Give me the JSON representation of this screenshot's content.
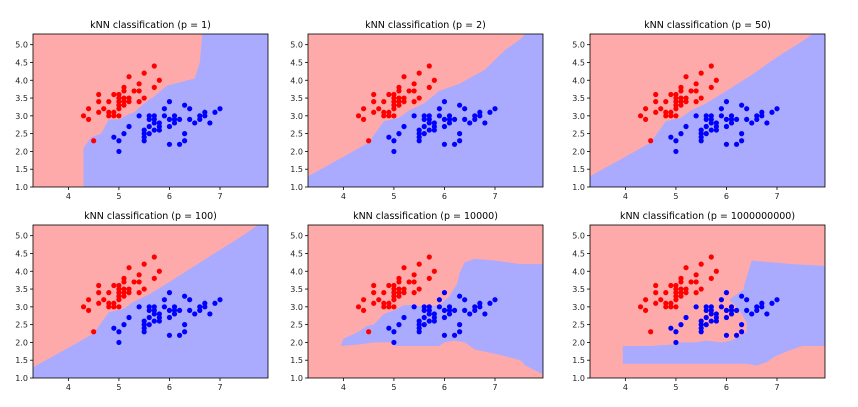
{
  "chart_data": {
    "type": "scatter",
    "colors": {
      "class0_region": "#ffaaaa",
      "class1_region": "#aaaaff",
      "class0_point": "#ff0000",
      "class1_point": "#0000ff"
    },
    "xlim": [
      3.3,
      7.95
    ],
    "ylim": [
      1.0,
      5.3
    ],
    "xticks": [
      4,
      5,
      6,
      7
    ],
    "yticks": [
      1.0,
      1.5,
      2.0,
      2.5,
      3.0,
      3.5,
      4.0,
      4.5,
      5.0
    ],
    "points_class0": [
      [
        4.3,
        3.0
      ],
      [
        4.4,
        2.9
      ],
      [
        4.4,
        3.2
      ],
      [
        4.5,
        2.3
      ],
      [
        4.6,
        3.1
      ],
      [
        4.6,
        3.4
      ],
      [
        4.6,
        3.6
      ],
      [
        4.7,
        3.2
      ],
      [
        4.8,
        3.0
      ],
      [
        4.8,
        3.4
      ],
      [
        4.8,
        3.1
      ],
      [
        4.9,
        3.0
      ],
      [
        4.9,
        3.1
      ],
      [
        4.9,
        3.6
      ],
      [
        5.0,
        3.6
      ],
      [
        5.0,
        3.4
      ],
      [
        5.0,
        3.0
      ],
      [
        5.0,
        3.3
      ],
      [
        5.0,
        3.5
      ],
      [
        5.0,
        3.2
      ],
      [
        5.1,
        3.5
      ],
      [
        5.1,
        3.7
      ],
      [
        5.1,
        3.3
      ],
      [
        5.1,
        3.8
      ],
      [
        5.1,
        3.4
      ],
      [
        5.2,
        3.5
      ],
      [
        5.2,
        3.4
      ],
      [
        5.2,
        4.1
      ],
      [
        5.3,
        3.7
      ],
      [
        5.4,
        3.9
      ],
      [
        5.4,
        3.7
      ],
      [
        5.4,
        3.4
      ],
      [
        5.5,
        4.2
      ],
      [
        5.5,
        3.5
      ],
      [
        5.7,
        4.4
      ],
      [
        5.7,
        3.8
      ],
      [
        5.8,
        4.0
      ]
    ],
    "points_class1": [
      [
        4.9,
        2.4
      ],
      [
        5.0,
        2.0
      ],
      [
        5.0,
        2.3
      ],
      [
        5.1,
        2.5
      ],
      [
        5.2,
        2.7
      ],
      [
        5.4,
        3.0
      ],
      [
        5.5,
        2.3
      ],
      [
        5.5,
        2.4
      ],
      [
        5.5,
        2.5
      ],
      [
        5.5,
        2.6
      ],
      [
        5.6,
        2.9
      ],
      [
        5.6,
        3.0
      ],
      [
        5.6,
        2.5
      ],
      [
        5.6,
        2.7
      ],
      [
        5.7,
        2.8
      ],
      [
        5.7,
        2.6
      ],
      [
        5.7,
        3.0
      ],
      [
        5.7,
        2.9
      ],
      [
        5.8,
        2.7
      ],
      [
        5.8,
        2.6
      ],
      [
        5.8,
        2.8
      ],
      [
        5.9,
        3.0
      ],
      [
        5.9,
        3.2
      ],
      [
        6.0,
        2.2
      ],
      [
        6.0,
        2.9
      ],
      [
        6.0,
        2.7
      ],
      [
        6.0,
        3.4
      ],
      [
        6.1,
        2.9
      ],
      [
        6.1,
        2.8
      ],
      [
        6.1,
        3.0
      ],
      [
        6.2,
        2.2
      ],
      [
        6.2,
        2.9
      ],
      [
        6.3,
        3.3
      ],
      [
        6.3,
        2.5
      ],
      [
        6.3,
        2.3
      ],
      [
        6.4,
        3.2
      ],
      [
        6.4,
        2.9
      ],
      [
        6.5,
        2.8
      ],
      [
        6.6,
        2.9
      ],
      [
        6.6,
        3.0
      ],
      [
        6.7,
        3.1
      ],
      [
        6.7,
        3.0
      ],
      [
        6.8,
        2.8
      ],
      [
        6.9,
        3.1
      ],
      [
        7.0,
        3.2
      ]
    ],
    "panels": [
      {
        "title": "kNN classification (p = 1)",
        "class0_region": [
          [
            3.3,
            1.0
          ],
          [
            4.3,
            1.0
          ],
          [
            4.3,
            2.1
          ],
          [
            4.45,
            2.4
          ],
          [
            4.65,
            2.5
          ],
          [
            4.8,
            2.9
          ],
          [
            5.0,
            2.9
          ],
          [
            5.2,
            3.05
          ],
          [
            5.3,
            3.1
          ],
          [
            5.5,
            3.35
          ],
          [
            5.7,
            3.55
          ],
          [
            5.95,
            3.85
          ],
          [
            6.5,
            4.05
          ],
          [
            6.6,
            4.5
          ],
          [
            6.65,
            5.3
          ],
          [
            3.3,
            5.3
          ]
        ]
      },
      {
        "title": "kNN classification (p = 2)",
        "class0_region": [
          [
            3.3,
            1.3
          ],
          [
            4.0,
            1.85
          ],
          [
            4.5,
            2.25
          ],
          [
            4.8,
            2.85
          ],
          [
            5.1,
            2.95
          ],
          [
            5.3,
            3.15
          ],
          [
            5.6,
            3.35
          ],
          [
            5.9,
            3.7
          ],
          [
            6.3,
            3.9
          ],
          [
            6.8,
            4.3
          ],
          [
            7.2,
            4.85
          ],
          [
            7.5,
            5.15
          ],
          [
            7.6,
            5.3
          ],
          [
            3.3,
            5.3
          ]
        ]
      },
      {
        "title": "kNN classification (p = 50)",
        "class0_region": [
          [
            3.3,
            1.3
          ],
          [
            4.0,
            1.85
          ],
          [
            4.5,
            2.25
          ],
          [
            4.8,
            2.85
          ],
          [
            5.1,
            2.95
          ],
          [
            5.3,
            3.15
          ],
          [
            5.6,
            3.35
          ],
          [
            6.0,
            3.7
          ],
          [
            6.5,
            4.15
          ],
          [
            7.0,
            4.65
          ],
          [
            7.5,
            5.1
          ],
          [
            7.7,
            5.3
          ],
          [
            3.3,
            5.3
          ]
        ]
      },
      {
        "title": "kNN classification (p = 100)",
        "class0_region": [
          [
            3.3,
            1.3
          ],
          [
            4.0,
            1.85
          ],
          [
            4.5,
            2.25
          ],
          [
            4.8,
            2.85
          ],
          [
            5.1,
            2.95
          ],
          [
            5.3,
            3.15
          ],
          [
            5.6,
            3.35
          ],
          [
            6.0,
            3.7
          ],
          [
            6.5,
            4.15
          ],
          [
            7.0,
            4.6
          ],
          [
            7.5,
            5.05
          ],
          [
            7.75,
            5.3
          ],
          [
            3.3,
            5.3
          ]
        ]
      },
      {
        "title": "kNN classification (p = 10000)",
        "class1_region": [
          [
            3.95,
            1.9
          ],
          [
            4.35,
            1.95
          ],
          [
            4.6,
            2.0
          ],
          [
            5.0,
            2.0
          ],
          [
            5.0,
            1.9
          ],
          [
            5.9,
            1.9
          ],
          [
            6.0,
            2.0
          ],
          [
            6.2,
            2.05
          ],
          [
            6.4,
            2.0
          ],
          [
            6.6,
            1.8
          ],
          [
            7.1,
            1.65
          ],
          [
            7.5,
            1.5
          ],
          [
            7.6,
            1.35
          ],
          [
            7.95,
            1.1
          ],
          [
            7.95,
            4.2
          ],
          [
            7.5,
            4.2
          ],
          [
            7.0,
            4.3
          ],
          [
            6.6,
            4.35
          ],
          [
            6.4,
            4.25
          ],
          [
            6.3,
            3.95
          ],
          [
            6.25,
            3.65
          ],
          [
            6.1,
            3.3
          ],
          [
            5.9,
            3.05
          ],
          [
            5.6,
            3.0
          ],
          [
            5.4,
            3.05
          ],
          [
            5.2,
            3.05
          ],
          [
            5.0,
            2.9
          ],
          [
            4.8,
            2.8
          ],
          [
            4.6,
            2.5
          ],
          [
            4.45,
            2.45
          ],
          [
            4.3,
            2.3
          ],
          [
            4.0,
            2.1
          ]
        ]
      },
      {
        "title": "kNN classification (p = 1000000000)",
        "class1_region": [
          [
            3.95,
            1.4
          ],
          [
            3.95,
            1.9
          ],
          [
            4.35,
            1.9
          ],
          [
            4.5,
            1.9
          ],
          [
            5.0,
            1.95
          ],
          [
            5.0,
            2.0
          ],
          [
            5.4,
            2.0
          ],
          [
            5.6,
            2.05
          ],
          [
            5.9,
            2.0
          ],
          [
            6.1,
            2.05
          ],
          [
            6.3,
            2.2
          ],
          [
            6.4,
            2.3
          ],
          [
            6.4,
            2.55
          ],
          [
            6.3,
            2.8
          ],
          [
            6.2,
            3.0
          ],
          [
            6.05,
            3.2
          ],
          [
            6.2,
            3.35
          ],
          [
            6.35,
            3.5
          ],
          [
            6.35,
            3.6
          ],
          [
            6.5,
            4.3
          ],
          [
            6.9,
            4.25
          ],
          [
            7.3,
            4.2
          ],
          [
            7.95,
            4.15
          ],
          [
            7.95,
            1.9
          ],
          [
            7.5,
            1.9
          ],
          [
            7.2,
            1.75
          ],
          [
            6.95,
            1.6
          ],
          [
            6.8,
            1.45
          ],
          [
            6.6,
            1.35
          ],
          [
            6.4,
            1.4
          ],
          [
            5.9,
            1.4
          ]
        ]
      }
    ]
  }
}
